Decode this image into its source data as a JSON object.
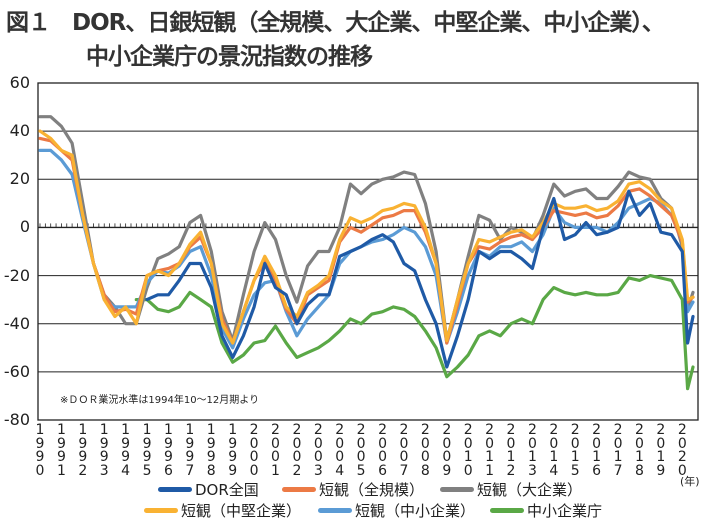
{
  "title": {
    "figure_label": "図１",
    "line1": "DOR、日銀短観（全規模、大企業、中堅企業、中小企業）、",
    "line2": "中小企業庁の景況指数の推移"
  },
  "chart_data": {
    "type": "line",
    "title": "DOR、日銀短観（全規模、大企業、中堅企業、中小企業）、中小企業庁の景況指数の推移",
    "xlabel": "(年)",
    "ylabel": "",
    "ylim": [
      -80,
      60
    ],
    "xlim": [
      1990,
      2020.5
    ],
    "grid": true,
    "legend_position": "bottom",
    "y_ticks": [
      "60",
      "40",
      "20",
      "0",
      "-20",
      "-40",
      "-60",
      "-80"
    ],
    "x_ticks": [
      "1990",
      "1991",
      "1992",
      "1993",
      "1994",
      "1995",
      "1996",
      "1997",
      "1998",
      "1999",
      "2000",
      "2001",
      "2002",
      "2003",
      "2004",
      "2005",
      "2006",
      "2007",
      "2008",
      "2009",
      "2010",
      "2011",
      "2012",
      "2013",
      "2014",
      "2015",
      "2016",
      "2017",
      "2018",
      "2019",
      "2020"
    ],
    "note": "※ＤＯＲ業況水準は1994年10～12月期より",
    "x": [
      1990,
      1990.5,
      1991,
      1991.5,
      1992,
      1992.5,
      1993,
      1993.5,
      1994,
      1994.5,
      1995,
      1995.5,
      1996,
      1996.5,
      1997,
      1997.5,
      1998,
      1998.5,
      1999,
      1999.5,
      2000,
      2000.5,
      2001,
      2001.5,
      2002,
      2002.5,
      2003,
      2003.5,
      2004,
      2004.5,
      2005,
      2005.5,
      2006,
      2006.5,
      2007,
      2007.5,
      2008,
      2008.5,
      2009,
      2009.5,
      2010,
      2010.5,
      2011,
      2011.5,
      2012,
      2012.5,
      2013,
      2013.5,
      2014,
      2014.5,
      2015,
      2015.5,
      2016,
      2016.5,
      2017,
      2017.5,
      2018,
      2018.5,
      2019,
      2019.5,
      2020,
      2020.25,
      2020.5
    ],
    "series": [
      {
        "name": "中小企業庁",
        "color": "#5aa846",
        "values": [
          null,
          null,
          null,
          null,
          null,
          null,
          null,
          null,
          null,
          -30,
          -30,
          -34,
          -35,
          -33,
          -27,
          -30,
          -33,
          -48,
          -56,
          -53,
          -48,
          -47,
          -41,
          -48,
          -54,
          -52,
          -50,
          -47,
          -43,
          -38,
          -40,
          -36,
          -35,
          -33,
          -34,
          -37,
          -43,
          -50,
          -62,
          -58,
          -53,
          -45,
          -43,
          -45,
          -40,
          -38,
          -40,
          -30,
          -25,
          -27,
          -28,
          -27,
          -28,
          -28,
          -27,
          -21,
          -22,
          -20,
          -21,
          -22,
          -30,
          -67,
          -58
        ]
      },
      {
        "name": "短観（大企業）",
        "color": "#808080",
        "values": [
          46,
          46,
          42,
          35,
          10,
          -15,
          -28,
          -33,
          -40,
          -40,
          -25,
          -13,
          -11,
          -8,
          2,
          5,
          -10,
          -35,
          -47,
          -28,
          -10,
          2,
          -5,
          -20,
          -31,
          -16,
          -10,
          -10,
          0,
          18,
          14,
          18,
          20,
          21,
          23,
          22,
          10,
          -10,
          -47,
          -30,
          -12,
          5,
          3,
          -5,
          0,
          -2,
          -5,
          5,
          18,
          13,
          15,
          16,
          12,
          12,
          17,
          23,
          21,
          20,
          12,
          8,
          -8,
          -34,
          -27
        ]
      },
      {
        "name": "短観（中小企業）",
        "color": "#5b9bd5",
        "values": [
          32,
          32,
          28,
          22,
          3,
          -15,
          -30,
          -33,
          -33,
          -33,
          -23,
          -18,
          -19,
          -16,
          -10,
          -8,
          -20,
          -42,
          -50,
          -38,
          -28,
          -23,
          -22,
          -35,
          -45,
          -38,
          -33,
          -28,
          -15,
          -10,
          -8,
          -6,
          -5,
          -3,
          0,
          -2,
          -8,
          -20,
          -48,
          -35,
          -20,
          -10,
          -12,
          -8,
          -8,
          -6,
          -10,
          -3,
          8,
          2,
          0,
          0,
          0,
          -2,
          2,
          8,
          10,
          12,
          10,
          5,
          -6,
          -35,
          -31
        ]
      },
      {
        "name": "短観（全規模）",
        "color": "#ec7a45",
        "values": [
          37,
          36,
          32,
          28,
          5,
          -15,
          -28,
          -35,
          -34,
          -36,
          -20,
          -18,
          -17,
          -15,
          -8,
          -4,
          -15,
          -38,
          -48,
          -35,
          -22,
          -14,
          -22,
          -34,
          -40,
          -28,
          -25,
          -22,
          -6,
          0,
          -2,
          1,
          4,
          5,
          7,
          7,
          -2,
          -15,
          -48,
          -32,
          -15,
          -8,
          -9,
          -6,
          -4,
          -3,
          -5,
          0,
          7,
          6,
          5,
          6,
          4,
          5,
          9,
          15,
          16,
          13,
          9,
          5,
          -6,
          -31,
          -29
        ]
      },
      {
        "name": "短観（中堅企業）",
        "color": "#f9b233",
        "values": [
          40,
          37,
          32,
          30,
          5,
          -15,
          -30,
          -37,
          -33,
          -40,
          -20,
          -18,
          -20,
          -15,
          -7,
          -2,
          -15,
          -40,
          -48,
          -35,
          -22,
          -12,
          -20,
          -33,
          -37,
          -27,
          -24,
          -20,
          -5,
          4,
          2,
          4,
          7,
          8,
          10,
          9,
          0,
          -15,
          -47,
          -30,
          -15,
          -5,
          -6,
          -4,
          -2,
          -1,
          -4,
          2,
          10,
          8,
          8,
          9,
          7,
          8,
          11,
          18,
          19,
          16,
          11,
          8,
          -5,
          -30,
          -29
        ]
      },
      {
        "name": "DOR全国",
        "color": "#1f5aa6",
        "values": [
          null,
          null,
          null,
          null,
          null,
          null,
          null,
          null,
          null,
          null,
          -30,
          -28,
          -28,
          -22,
          -15,
          -15,
          -25,
          -45,
          -54,
          -45,
          -33,
          -15,
          -25,
          -28,
          -40,
          -32,
          -28,
          -28,
          -12,
          -10,
          -8,
          -5,
          -3,
          -6,
          -15,
          -18,
          -30,
          -40,
          -58,
          -45,
          -30,
          -10,
          -13,
          -10,
          -10,
          -13,
          -17,
          0,
          12,
          -5,
          -3,
          2,
          -3,
          -2,
          0,
          15,
          5,
          10,
          -2,
          -3,
          -10,
          -48,
          -37
        ]
      }
    ],
    "legend": [
      "DOR全国",
      "短観（全規模）",
      "短観（大企業）",
      "短観（中堅企業）",
      "短観（中小企業）",
      "中小企業庁"
    ]
  }
}
